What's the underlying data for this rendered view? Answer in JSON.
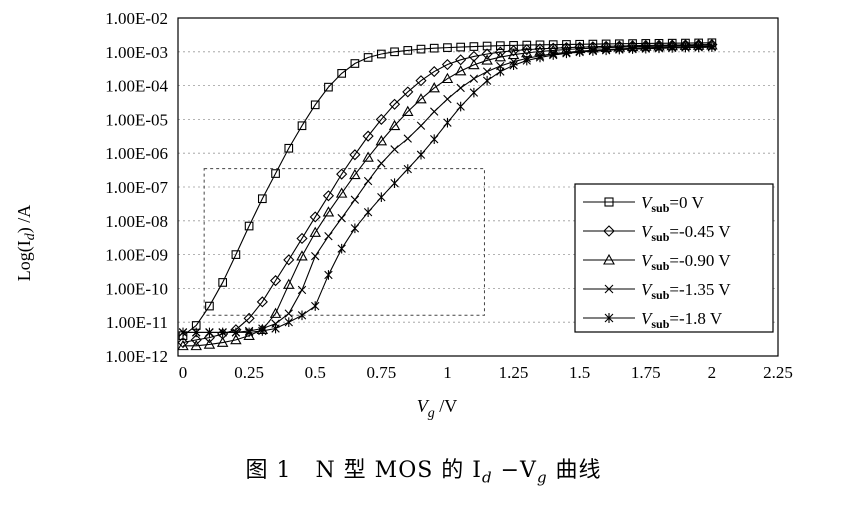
{
  "chart_data": {
    "type": "line",
    "xlabel": "V_g /V",
    "ylabel": "Log(I_d) /A",
    "xlim": [
      0,
      2.25
    ],
    "ylim_exp": [
      -12,
      -2
    ],
    "y_log": true,
    "grid": true,
    "legend_position": "lower-right",
    "x_tick_labels": [
      "0",
      "0.25",
      "0.5",
      "0.75",
      "1",
      "1.25",
      "1.5",
      "1.75",
      "2",
      "2.25"
    ],
    "y_tick_labels": [
      "1.00E-12",
      "1.00E-11",
      "1.00E-10",
      "1.00E-09",
      "1.00E-08",
      "1.00E-07",
      "1.00E-06",
      "1.00E-05",
      "1.00E-04",
      "1.00E-03",
      "1.00E-02"
    ],
    "x": [
      0,
      0.05,
      0.1,
      0.15,
      0.2,
      0.25,
      0.3,
      0.35,
      0.4,
      0.45,
      0.5,
      0.55,
      0.6,
      0.65,
      0.7,
      0.75,
      0.8,
      0.85,
      0.9,
      0.95,
      1.0,
      1.05,
      1.1,
      1.15,
      1.2,
      1.25,
      1.3,
      1.35,
      1.4,
      1.45,
      1.5,
      1.55,
      1.6,
      1.65,
      1.7,
      1.75,
      1.8,
      1.85,
      1.9,
      1.95,
      2.0
    ],
    "series": [
      {
        "legend_label": "V",
        "legend_sub": "sub",
        "legend_value": "=0 V",
        "marker": "square",
        "values": [
          4e-12,
          8e-12,
          3e-11,
          1.5e-10,
          1e-09,
          7e-09,
          4.5e-08,
          2.5e-07,
          1.4e-06,
          6.5e-06,
          2.7e-05,
          9e-05,
          0.00023,
          0.00045,
          0.00068,
          0.00086,
          0.001,
          0.0011,
          0.0012,
          0.00128,
          0.00133,
          0.00138,
          0.00143,
          0.00148,
          0.00152,
          0.00155,
          0.00158,
          0.00161,
          0.00163,
          0.00165,
          0.00167,
          0.00169,
          0.00171,
          0.00173,
          0.00175,
          0.00177,
          0.00178,
          0.0018,
          0.00181,
          0.00183,
          0.00185
        ]
      },
      {
        "legend_label": "V",
        "legend_sub": "sub",
        "legend_value": "=-0.45 V",
        "marker": "diamond",
        "values": [
          2.5e-12,
          3e-12,
          3.5e-12,
          4.5e-12,
          6e-12,
          1.3e-11,
          4e-11,
          1.7e-10,
          7e-10,
          3e-09,
          1.3e-08,
          5.5e-08,
          2.4e-07,
          9e-07,
          3.2e-06,
          1e-05,
          2.8e-05,
          6.5e-05,
          0.00014,
          0.00026,
          0.00042,
          0.00058,
          0.00073,
          0.00086,
          0.00098,
          0.00108,
          0.00116,
          0.00122,
          0.00128,
          0.00133,
          0.00137,
          0.00141,
          0.00145,
          0.00148,
          0.00151,
          0.00154,
          0.00156,
          0.00158,
          0.0016,
          0.00162,
          0.00164
        ]
      },
      {
        "legend_label": "V",
        "legend_sub": "sub",
        "legend_value": "=-0.90 V",
        "marker": "triangle",
        "values": [
          2e-12,
          2e-12,
          2.2e-12,
          2.5e-12,
          3e-12,
          4e-12,
          6e-12,
          1.8e-11,
          1.3e-10,
          9e-10,
          4.5e-09,
          1.8e-08,
          6.5e-08,
          2.3e-07,
          7.5e-07,
          2.3e-06,
          6.5e-06,
          1.7e-05,
          4e-05,
          8.5e-05,
          0.00016,
          0.00027,
          0.00041,
          0.00056,
          0.0007,
          0.00082,
          0.00093,
          0.00102,
          0.0011,
          0.00117,
          0.00123,
          0.00128,
          0.00133,
          0.00137,
          0.00141,
          0.00144,
          0.00147,
          0.0015,
          0.00153,
          0.00155,
          0.00157
        ]
      },
      {
        "legend_label": "V",
        "legend_sub": "sub",
        "legend_value": "=-1.35 V",
        "marker": "x",
        "values": [
          5e-12,
          5e-12,
          5e-12,
          5e-12,
          5e-12,
          5.5e-12,
          6.5e-12,
          9e-12,
          1.8e-11,
          9e-11,
          9e-10,
          3.5e-09,
          1.2e-08,
          4.2e-08,
          1.5e-07,
          5e-07,
          1.3e-06,
          2.7e-06,
          6.5e-06,
          1.7e-05,
          4e-05,
          8.5e-05,
          0.00016,
          0.00026,
          0.00038,
          0.00051,
          0.00064,
          0.00076,
          0.00087,
          0.00096,
          0.00104,
          0.00111,
          0.00117,
          0.00122,
          0.00127,
          0.00131,
          0.00135,
          0.00138,
          0.00141,
          0.00143,
          0.00145
        ]
      },
      {
        "legend_label": "V",
        "legend_sub": "sub",
        "legend_value": "=-1.8 V",
        "marker": "asterisk",
        "values": [
          5e-12,
          5e-12,
          5e-12,
          5e-12,
          5e-12,
          5e-12,
          5.5e-12,
          6.5e-12,
          1e-11,
          1.6e-11,
          3e-11,
          2.5e-10,
          1.5e-09,
          6e-09,
          1.8e-08,
          5e-08,
          1.3e-07,
          3.4e-07,
          9e-07,
          2.6e-06,
          8e-06,
          2.4e-05,
          6.2e-05,
          0.00014,
          0.00026,
          0.0004,
          0.00055,
          0.00068,
          0.0008,
          0.0009,
          0.00098,
          0.00105,
          0.00111,
          0.00116,
          0.0012,
          0.00124,
          0.00127,
          0.0013,
          0.00133,
          0.00135,
          0.00137
        ]
      }
    ]
  },
  "caption": {
    "figure_number": "图 1",
    "text": "N 型 MOS 的 I",
    "sub_d": "d",
    "dash": " −V",
    "sub_g": "g",
    "tail": " 曲线"
  },
  "axis_text": {
    "ylabel_main": "Log(I",
    "ylabel_sub": "d",
    "ylabel_tail": ") /A",
    "xlabel_main": "V",
    "xlabel_sub": "g",
    "xlabel_tail": " /V"
  }
}
